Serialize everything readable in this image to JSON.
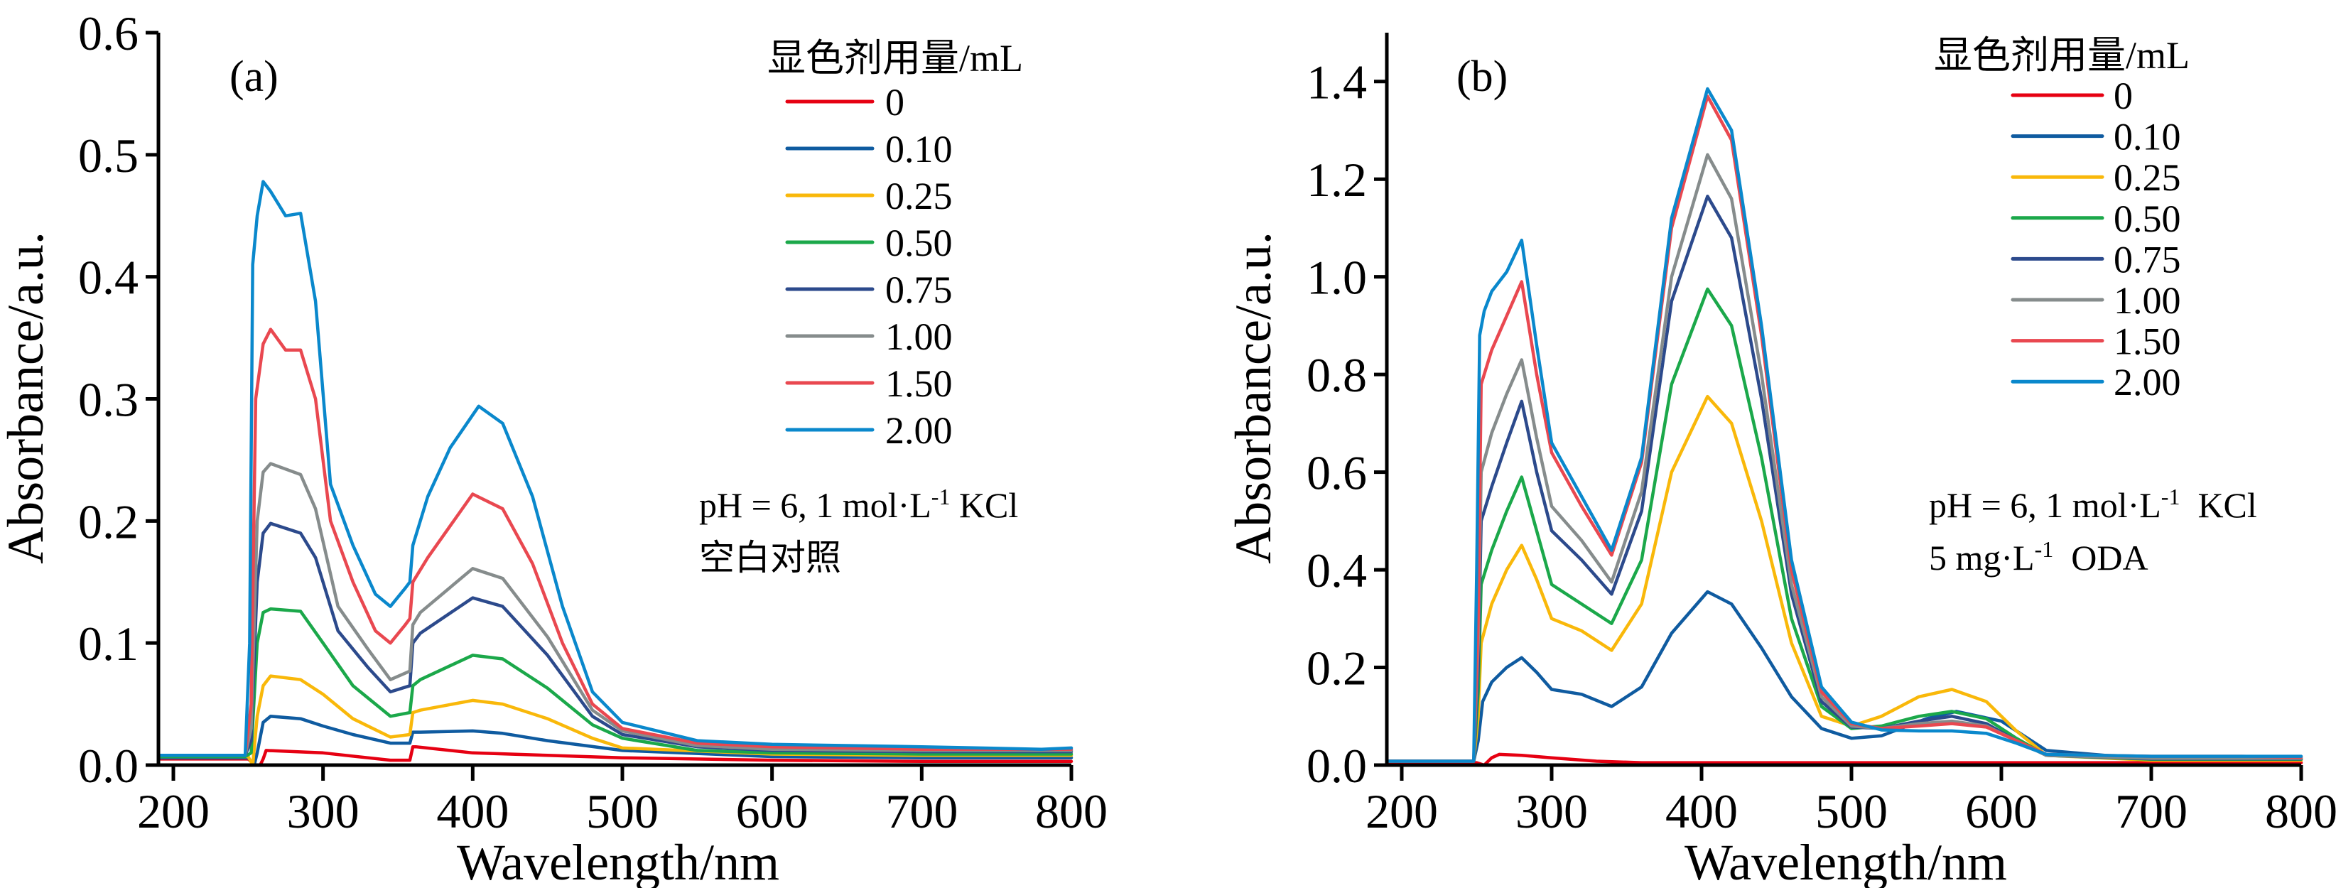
{
  "chart_data": [
    {
      "type": "line",
      "panel": "(a)",
      "xlabel": "Wavelength/nm",
      "ylabel": "Absorbance/a.u.",
      "xlim": [
        190,
        800
      ],
      "ylim": [
        0,
        0.6
      ],
      "xticks": [
        200,
        300,
        400,
        500,
        600,
        700,
        800
      ],
      "yticks": [
        0.0,
        0.1,
        0.2,
        0.3,
        0.4,
        0.5,
        0.6
      ],
      "ytick_labels": [
        "0.0",
        "0.1",
        "0.2",
        "0.3",
        "0.4",
        "0.5",
        "0.6"
      ],
      "grid": false,
      "legend": {
        "title": "显色剂用量/mL",
        "placement": "top-right"
      },
      "annotations": [
        "pH = 6, 1 mol·L",
        "-1",
        " KCl",
        "空白对照"
      ],
      "series": [
        {
          "name": "0",
          "color": "#e60012",
          "x": [
            190,
            250,
            255,
            258,
            260,
            262,
            300,
            330,
            345,
            358,
            360,
            362,
            400,
            450,
            500,
            600,
            700,
            800
          ],
          "y": [
            0.005,
            0.005,
            0.0,
            0.0,
            0.005,
            0.012,
            0.01,
            0.006,
            0.004,
            0.004,
            0.015,
            0.015,
            0.01,
            0.008,
            0.006,
            0.004,
            0.003,
            0.003
          ]
        },
        {
          "name": "0.10",
          "color": "#0f5ba0",
          "x": [
            190,
            250,
            254,
            256,
            260,
            265,
            285,
            300,
            320,
            345,
            358,
            360,
            365,
            400,
            420,
            450,
            500,
            600,
            700,
            800
          ],
          "y": [
            0.006,
            0.006,
            0.0,
            0.01,
            0.035,
            0.04,
            0.038,
            0.032,
            0.025,
            0.018,
            0.018,
            0.027,
            0.027,
            0.028,
            0.026,
            0.02,
            0.012,
            0.007,
            0.006,
            0.006
          ]
        },
        {
          "name": "0.25",
          "color": "#f9b80a",
          "x": [
            190,
            250,
            253,
            256,
            260,
            265,
            285,
            300,
            320,
            345,
            358,
            360,
            365,
            400,
            420,
            450,
            480,
            500,
            600,
            700,
            800
          ],
          "y": [
            0.007,
            0.007,
            0.0,
            0.04,
            0.065,
            0.073,
            0.07,
            0.058,
            0.038,
            0.023,
            0.025,
            0.043,
            0.045,
            0.053,
            0.05,
            0.038,
            0.022,
            0.014,
            0.009,
            0.008,
            0.008
          ]
        },
        {
          "name": "0.50",
          "color": "#1ba84a",
          "x": [
            190,
            248,
            252,
            256,
            260,
            265,
            285,
            300,
            320,
            345,
            358,
            360,
            365,
            400,
            420,
            450,
            480,
            500,
            550,
            600,
            700,
            800
          ],
          "y": [
            0.007,
            0.007,
            0.01,
            0.1,
            0.125,
            0.128,
            0.126,
            0.1,
            0.065,
            0.04,
            0.043,
            0.065,
            0.07,
            0.09,
            0.087,
            0.063,
            0.033,
            0.022,
            0.012,
            0.01,
            0.009,
            0.009
          ]
        },
        {
          "name": "0.75",
          "color": "#2c4a8c",
          "x": [
            190,
            248,
            252,
            256,
            260,
            265,
            285,
            295,
            310,
            330,
            345,
            358,
            360,
            365,
            400,
            420,
            450,
            480,
            500,
            550,
            600,
            700,
            800
          ],
          "y": [
            0.008,
            0.008,
            0.02,
            0.15,
            0.19,
            0.198,
            0.19,
            0.17,
            0.11,
            0.08,
            0.06,
            0.065,
            0.1,
            0.108,
            0.137,
            0.13,
            0.09,
            0.04,
            0.025,
            0.015,
            0.012,
            0.011,
            0.011
          ]
        },
        {
          "name": "1.00",
          "color": "#868c8c",
          "x": [
            190,
            248,
            252,
            256,
            260,
            265,
            285,
            295,
            310,
            330,
            345,
            358,
            360,
            365,
            400,
            420,
            450,
            480,
            500,
            550,
            600,
            700,
            800
          ],
          "y": [
            0.008,
            0.008,
            0.03,
            0.2,
            0.24,
            0.247,
            0.238,
            0.21,
            0.13,
            0.095,
            0.07,
            0.077,
            0.115,
            0.125,
            0.161,
            0.153,
            0.105,
            0.045,
            0.028,
            0.016,
            0.013,
            0.012,
            0.012
          ]
        },
        {
          "name": "1.50",
          "color": "#e94850",
          "x": [
            190,
            248,
            252,
            255,
            260,
            265,
            275,
            285,
            295,
            305,
            320,
            335,
            345,
            355,
            358,
            360,
            370,
            400,
            420,
            440,
            460,
            480,
            500,
            550,
            600,
            700,
            800
          ],
          "y": [
            0.008,
            0.008,
            0.05,
            0.3,
            0.345,
            0.357,
            0.34,
            0.34,
            0.3,
            0.2,
            0.15,
            0.11,
            0.1,
            0.115,
            0.12,
            0.15,
            0.17,
            0.222,
            0.21,
            0.165,
            0.1,
            0.05,
            0.03,
            0.018,
            0.015,
            0.013,
            0.013
          ]
        },
        {
          "name": "2.00",
          "color": "#0a88cc",
          "x": [
            190,
            248,
            251,
            253,
            256,
            260,
            265,
            275,
            285,
            295,
            305,
            320,
            335,
            345,
            355,
            358,
            360,
            370,
            385,
            404,
            420,
            440,
            460,
            480,
            500,
            550,
            600,
            700,
            780,
            800
          ],
          "y": [
            0.008,
            0.008,
            0.1,
            0.41,
            0.45,
            0.478,
            0.47,
            0.45,
            0.452,
            0.38,
            0.23,
            0.18,
            0.14,
            0.13,
            0.145,
            0.15,
            0.18,
            0.22,
            0.26,
            0.294,
            0.28,
            0.22,
            0.13,
            0.06,
            0.035,
            0.02,
            0.017,
            0.015,
            0.013,
            0.014
          ]
        }
      ]
    },
    {
      "type": "line",
      "panel": "(b)",
      "xlabel": "Wavelength/nm",
      "ylabel": "Absorbance/a.u.",
      "xlim": [
        190,
        800
      ],
      "ylim": [
        0,
        1.5
      ],
      "xticks": [
        200,
        300,
        400,
        500,
        600,
        700,
        800
      ],
      "yticks": [
        0.0,
        0.2,
        0.4,
        0.6,
        0.8,
        1.0,
        1.2,
        1.4
      ],
      "ytick_labels": [
        "0.0",
        "0.2",
        "0.4",
        "0.6",
        "0.8",
        "1.0",
        "1.2",
        "1.4"
      ],
      "grid": false,
      "legend": {
        "title": "显色剂用量/mL",
        "placement": "top-right"
      },
      "annotations": [
        "pH = 6, 1 mol·L",
        "-1",
        "  KCl",
        "5 mg·L",
        "-1",
        "  ODA"
      ],
      "series": [
        {
          "name": "0",
          "color": "#e60012",
          "x": [
            190,
            250,
            255,
            260,
            265,
            280,
            300,
            330,
            360,
            400,
            500,
            600,
            700,
            800
          ],
          "y": [
            0.005,
            0.005,
            0.0,
            0.015,
            0.022,
            0.02,
            0.015,
            0.008,
            0.005,
            0.005,
            0.005,
            0.005,
            0.005,
            0.005
          ]
        },
        {
          "name": "0.10",
          "color": "#0f5ba0",
          "x": [
            190,
            248,
            251,
            254,
            260,
            270,
            280,
            290,
            300,
            320,
            340,
            360,
            380,
            404,
            420,
            440,
            460,
            480,
            500,
            520,
            550,
            570,
            600,
            630,
            700,
            800
          ],
          "y": [
            0.008,
            0.008,
            0.05,
            0.13,
            0.17,
            0.2,
            0.22,
            0.19,
            0.155,
            0.145,
            0.12,
            0.16,
            0.27,
            0.355,
            0.33,
            0.24,
            0.14,
            0.075,
            0.055,
            0.06,
            0.095,
            0.11,
            0.09,
            0.03,
            0.012,
            0.012
          ]
        },
        {
          "name": "0.25",
          "color": "#f9b80a",
          "x": [
            190,
            248,
            251,
            253,
            260,
            270,
            280,
            290,
            300,
            320,
            340,
            360,
            380,
            404,
            420,
            440,
            460,
            480,
            500,
            520,
            545,
            567,
            590,
            610,
            630,
            700,
            800
          ],
          "y": [
            0.008,
            0.008,
            0.1,
            0.25,
            0.33,
            0.4,
            0.45,
            0.38,
            0.3,
            0.275,
            0.235,
            0.33,
            0.6,
            0.755,
            0.7,
            0.5,
            0.25,
            0.1,
            0.08,
            0.1,
            0.14,
            0.155,
            0.13,
            0.07,
            0.02,
            0.01,
            0.01
          ]
        },
        {
          "name": "0.50",
          "color": "#1ba84a",
          "x": [
            190,
            248,
            251,
            253,
            260,
            270,
            280,
            290,
            300,
            320,
            340,
            360,
            380,
            404,
            420,
            440,
            460,
            480,
            500,
            520,
            545,
            567,
            590,
            610,
            630,
            700,
            800
          ],
          "y": [
            0.008,
            0.008,
            0.15,
            0.37,
            0.44,
            0.52,
            0.59,
            0.48,
            0.37,
            0.33,
            0.29,
            0.42,
            0.78,
            0.975,
            0.9,
            0.63,
            0.3,
            0.12,
            0.075,
            0.08,
            0.1,
            0.11,
            0.095,
            0.055,
            0.02,
            0.012,
            0.012
          ]
        },
        {
          "name": "0.75",
          "color": "#2c4a8c",
          "x": [
            190,
            248,
            251,
            253,
            260,
            270,
            280,
            290,
            300,
            320,
            340,
            360,
            380,
            404,
            420,
            440,
            460,
            480,
            500,
            520,
            545,
            567,
            590,
            610,
            630,
            700,
            800
          ],
          "y": [
            0.008,
            0.008,
            0.2,
            0.5,
            0.57,
            0.66,
            0.745,
            0.6,
            0.48,
            0.42,
            0.35,
            0.52,
            0.95,
            1.165,
            1.08,
            0.75,
            0.35,
            0.13,
            0.078,
            0.075,
            0.09,
            0.1,
            0.085,
            0.05,
            0.02,
            0.013,
            0.013
          ]
        },
        {
          "name": "1.00",
          "color": "#868c8c",
          "x": [
            190,
            248,
            251,
            253,
            260,
            270,
            280,
            290,
            300,
            320,
            340,
            360,
            380,
            404,
            420,
            440,
            460,
            480,
            500,
            520,
            545,
            567,
            590,
            610,
            630,
            700,
            800
          ],
          "y": [
            0.008,
            0.008,
            0.25,
            0.6,
            0.68,
            0.76,
            0.83,
            0.67,
            0.53,
            0.46,
            0.375,
            0.56,
            1.0,
            1.25,
            1.16,
            0.8,
            0.37,
            0.14,
            0.08,
            0.075,
            0.085,
            0.09,
            0.08,
            0.05,
            0.02,
            0.014,
            0.014
          ]
        },
        {
          "name": "1.50",
          "color": "#e94850",
          "x": [
            190,
            248,
            251,
            253,
            260,
            270,
            280,
            290,
            300,
            320,
            340,
            360,
            380,
            404,
            420,
            440,
            460,
            480,
            500,
            520,
            545,
            567,
            590,
            610,
            630,
            700,
            760,
            800
          ],
          "y": [
            0.008,
            0.008,
            0.3,
            0.78,
            0.85,
            0.92,
            0.99,
            0.8,
            0.64,
            0.53,
            0.43,
            0.62,
            1.1,
            1.37,
            1.28,
            0.88,
            0.4,
            0.15,
            0.085,
            0.075,
            0.08,
            0.085,
            0.078,
            0.05,
            0.022,
            0.018,
            0.018,
            0.016
          ]
        },
        {
          "name": "2.00",
          "color": "#0a88cc",
          "x": [
            190,
            248,
            250,
            252,
            255,
            260,
            270,
            280,
            290,
            300,
            320,
            340,
            360,
            380,
            404,
            420,
            440,
            460,
            480,
            500,
            520,
            545,
            567,
            590,
            610,
            630,
            700,
            800
          ],
          "y": [
            0.008,
            0.008,
            0.4,
            0.88,
            0.93,
            0.97,
            1.01,
            1.075,
            0.86,
            0.66,
            0.55,
            0.44,
            0.63,
            1.12,
            1.385,
            1.3,
            0.9,
            0.42,
            0.16,
            0.088,
            0.072,
            0.07,
            0.07,
            0.065,
            0.045,
            0.022,
            0.018,
            0.018
          ]
        }
      ]
    }
  ]
}
